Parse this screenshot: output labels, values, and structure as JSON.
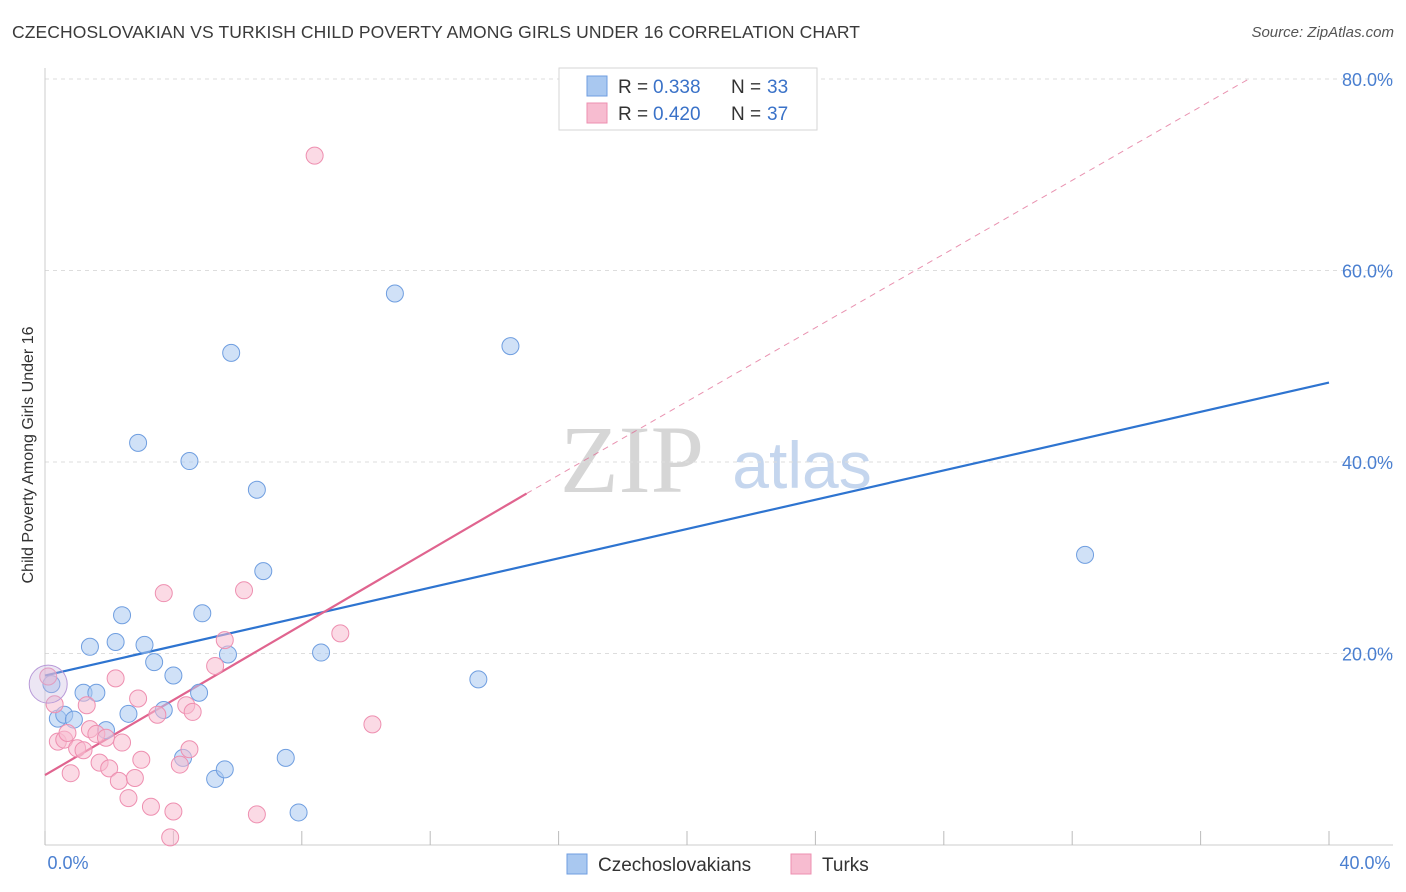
{
  "title": "CZECHOSLOVAKIAN VS TURKISH CHILD POVERTY AMONG GIRLS UNDER 16 CORRELATION CHART",
  "source": "Source: ZipAtlas.com",
  "watermark": {
    "zip": "ZIP",
    "atlas": "atlas"
  },
  "chart_data": {
    "type": "scatter",
    "xlabel": "",
    "ylabel": "Child Poverty Among Girls Under 16",
    "xlim": [
      0,
      40
    ],
    "ylim": [
      0,
      80
    ],
    "y_ticks": [
      {
        "value": 20,
        "label": "20.0%"
      },
      {
        "value": 40,
        "label": "40.0%"
      },
      {
        "value": 60,
        "label": "60.0%"
      },
      {
        "value": 80,
        "label": "80.0%"
      }
    ],
    "x_tick_labels": {
      "min": "0.0%",
      "max": "40.0%"
    },
    "x_minor_ticks": [
      0,
      4,
      8,
      12,
      16,
      20,
      24,
      28,
      32,
      36,
      40
    ],
    "grid": true,
    "legend": {
      "entries": [
        {
          "r_label": "R =",
          "r_value": "0.338",
          "n_label": "N =",
          "n_value": "33"
        },
        {
          "r_label": "R =",
          "r_value": "0.420",
          "n_label": "N =",
          "n_value": "37"
        }
      ]
    },
    "series": [
      {
        "name": "Czechoslovakians",
        "color": "#a9c8f0",
        "edge": "#6f9ee0",
        "trend_color": "#2e74d0",
        "trend": {
          "x1": 0,
          "y1": 17.7,
          "x2": 40,
          "y2": 48.3
        },
        "points": [
          [
            0.2,
            16.8
          ],
          [
            0.4,
            13.2
          ],
          [
            0.6,
            13.6
          ],
          [
            0.9,
            13.1
          ],
          [
            1.2,
            15.9
          ],
          [
            1.4,
            20.7
          ],
          [
            1.6,
            15.9
          ],
          [
            1.9,
            12.0
          ],
          [
            2.2,
            21.2
          ],
          [
            2.4,
            24.0
          ],
          [
            2.6,
            13.7
          ],
          [
            2.9,
            42.0
          ],
          [
            3.1,
            20.9
          ],
          [
            3.4,
            19.1
          ],
          [
            3.7,
            14.1
          ],
          [
            4.0,
            17.7
          ],
          [
            4.3,
            9.1
          ],
          [
            4.5,
            40.1
          ],
          [
            4.8,
            15.9
          ],
          [
            4.9,
            24.2
          ],
          [
            5.3,
            6.9
          ],
          [
            5.6,
            7.9
          ],
          [
            5.7,
            19.9
          ],
          [
            5.8,
            51.4
          ],
          [
            6.6,
            37.1
          ],
          [
            6.8,
            28.6
          ],
          [
            7.5,
            9.1
          ],
          [
            7.9,
            3.4
          ],
          [
            8.6,
            20.1
          ],
          [
            10.9,
            57.6
          ],
          [
            13.5,
            17.3
          ],
          [
            14.5,
            52.1
          ],
          [
            32.4,
            30.3
          ]
        ]
      },
      {
        "name": "Turks",
        "color": "#f7bcd0",
        "edge": "#ee8fb0",
        "trend_color": "#e0648f",
        "trend": {
          "x1": 0,
          "y1": 7.3,
          "x2": 15.0,
          "y2": 36.7
        },
        "trend_dashed": {
          "x1": 15.0,
          "y1": 36.7,
          "x2": 37.5,
          "y2": 80.0
        },
        "points": [
          [
            0.1,
            17.6
          ],
          [
            0.3,
            14.7
          ],
          [
            0.4,
            10.8
          ],
          [
            0.6,
            11.0
          ],
          [
            0.7,
            11.7
          ],
          [
            0.8,
            7.5
          ],
          [
            1.0,
            10.1
          ],
          [
            1.2,
            9.9
          ],
          [
            1.3,
            14.6
          ],
          [
            1.4,
            12.1
          ],
          [
            1.6,
            11.6
          ],
          [
            1.7,
            8.6
          ],
          [
            1.9,
            11.2
          ],
          [
            2.0,
            8.0
          ],
          [
            2.2,
            17.4
          ],
          [
            2.3,
            6.7
          ],
          [
            2.4,
            10.7
          ],
          [
            2.6,
            4.9
          ],
          [
            2.8,
            7.0
          ],
          [
            2.9,
            15.3
          ],
          [
            3.0,
            8.9
          ],
          [
            3.3,
            4.0
          ],
          [
            3.5,
            13.6
          ],
          [
            3.7,
            26.3
          ],
          [
            3.9,
            0.8
          ],
          [
            4.0,
            3.5
          ],
          [
            4.2,
            8.4
          ],
          [
            4.4,
            14.6
          ],
          [
            4.5,
            10.0
          ],
          [
            4.6,
            13.9
          ],
          [
            5.3,
            18.7
          ],
          [
            5.6,
            21.4
          ],
          [
            6.2,
            26.6
          ],
          [
            6.6,
            3.2
          ],
          [
            8.4,
            72.0
          ],
          [
            9.2,
            22.1
          ],
          [
            10.2,
            12.6
          ]
        ]
      }
    ]
  }
}
